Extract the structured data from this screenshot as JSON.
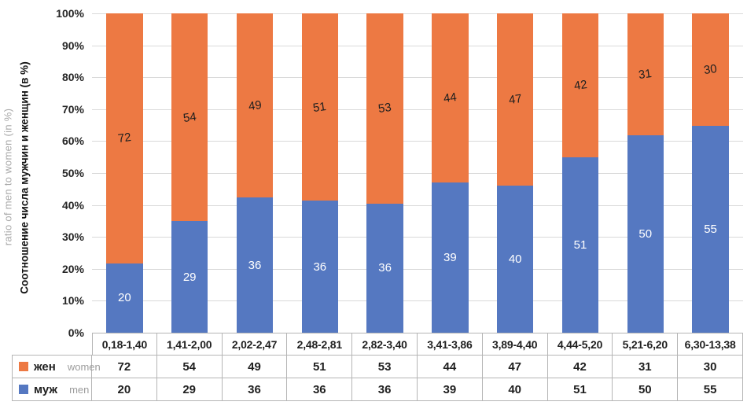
{
  "chart_data": {
    "type": "bar",
    "subtype": "stacked-100-percent-column",
    "title": "",
    "ylabel_ru": "Соотношение числа мужчин  и женщин  (в %)",
    "ylabel_en": "ratio of men to women (in %)",
    "xlabel": "",
    "ylim": [
      0,
      100
    ],
    "grid": true,
    "y_ticks": [
      "100%",
      "90%",
      "80%",
      "70%",
      "60%",
      "50%",
      "40%",
      "30%",
      "20%",
      "10%",
      "0%"
    ],
    "categories": [
      "0,18-1,40",
      "1,41-2,00",
      "2,02-2,47",
      "2,48-2,81",
      "2,82-3,40",
      "3,41-3,86",
      "3,89-4,40",
      "4,44-5,20",
      "5,21-6,20",
      "6,30-13,38"
    ],
    "series": [
      {
        "name": "жен",
        "name_en": "women",
        "color": "#ED7943",
        "label_color": "#1f1f1f",
        "values": [
          72,
          54,
          49,
          51,
          53,
          44,
          47,
          42,
          31,
          30
        ]
      },
      {
        "name": "муж",
        "name_en": "men",
        "color": "#5578C1",
        "label_color": "#ffffff",
        "values": [
          20,
          29,
          36,
          36,
          36,
          39,
          40,
          51,
          50,
          55
        ]
      }
    ],
    "legend_position": "data-table-left",
    "colors": {
      "gridline": "#d9d9d9",
      "axis_line": "#bfbfbf",
      "table_border": "#b5b5b5",
      "tick_text": "#262626",
      "secondary_text": "#9c9c9c"
    }
  }
}
